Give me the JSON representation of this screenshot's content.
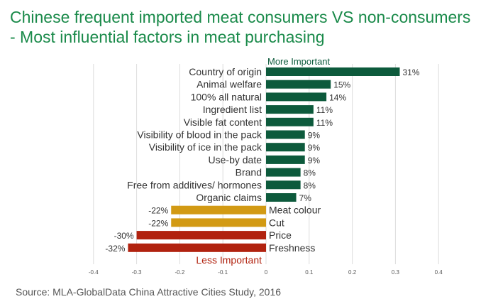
{
  "title_line1": "Chinese frequent imported meat consumers VS non-consumers",
  "title_line2": "- Most influential factors in meat purchasing",
  "source": "Source: MLA-GlobalData China Attractive Cities Study, 2016",
  "colors": {
    "title": "#1a8a4a",
    "positive_bar": "#0d5a3c",
    "neutral_negative_bar": "#d29a14",
    "strong_negative_bar": "#b1220f",
    "more_important_text": "#0d5a3c",
    "less_important_text": "#b1220f",
    "gridline": "#dddddd"
  },
  "chart_data": {
    "type": "bar",
    "orientation": "horizontal",
    "title": "",
    "xlabel": "",
    "ylabel": "",
    "xlim": [
      -0.4,
      0.4
    ],
    "x_ticks": [
      -0.4,
      -0.3,
      -0.2,
      -0.1,
      0,
      0.1,
      0.2,
      0.3,
      0.4
    ],
    "x_tick_labels": [
      "-0.4",
      "-0.3",
      "-0.2",
      "-0.1",
      "0",
      "0.1",
      "0.2",
      "0.3",
      "0.4"
    ],
    "grid": "vertical",
    "annotations": {
      "more_important": "More Important",
      "less_important": "Less Important"
    },
    "categories": [
      "Country of origin",
      "Animal welfare",
      "100% all natural",
      "Ingredient list",
      "Visible fat content",
      "Visibility of blood in the pack",
      "Visibility of ice in the pack",
      "Use-by date",
      "Brand",
      "Free from additives/ hormones",
      "Organic claims",
      "Meat colour",
      "Cut",
      "Price",
      "Freshness"
    ],
    "values": [
      0.31,
      0.15,
      0.14,
      0.11,
      0.11,
      0.09,
      0.09,
      0.09,
      0.08,
      0.08,
      0.07,
      -0.22,
      -0.22,
      -0.3,
      -0.32
    ],
    "value_labels": [
      "31%",
      "15%",
      "14%",
      "11%",
      "11%",
      "9%",
      "9%",
      "9%",
      "8%",
      "8%",
      "7%",
      "-22%",
      "-22%",
      "-30%",
      "-32%"
    ],
    "bar_color_keys": [
      "positive_bar",
      "positive_bar",
      "positive_bar",
      "positive_bar",
      "positive_bar",
      "positive_bar",
      "positive_bar",
      "positive_bar",
      "positive_bar",
      "positive_bar",
      "positive_bar",
      "neutral_negative_bar",
      "neutral_negative_bar",
      "strong_negative_bar",
      "strong_negative_bar"
    ]
  }
}
